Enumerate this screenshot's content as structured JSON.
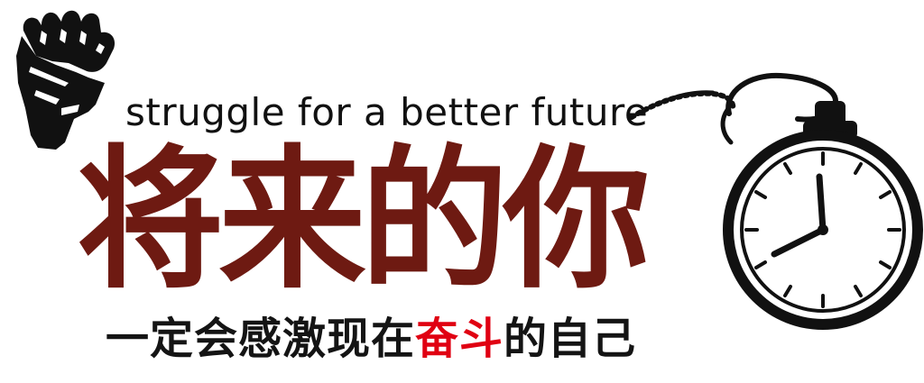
{
  "slogan": "struggle for a better future",
  "headline": "将来的你",
  "subline": {
    "before": "一定会感激现在",
    "accent": "奋斗",
    "after": "的自己"
  },
  "colors": {
    "headline": "#6e1a12",
    "accent": "#e00012",
    "ink": "#141414"
  },
  "icons": [
    "raised-fist-icon",
    "stopwatch-icon"
  ]
}
